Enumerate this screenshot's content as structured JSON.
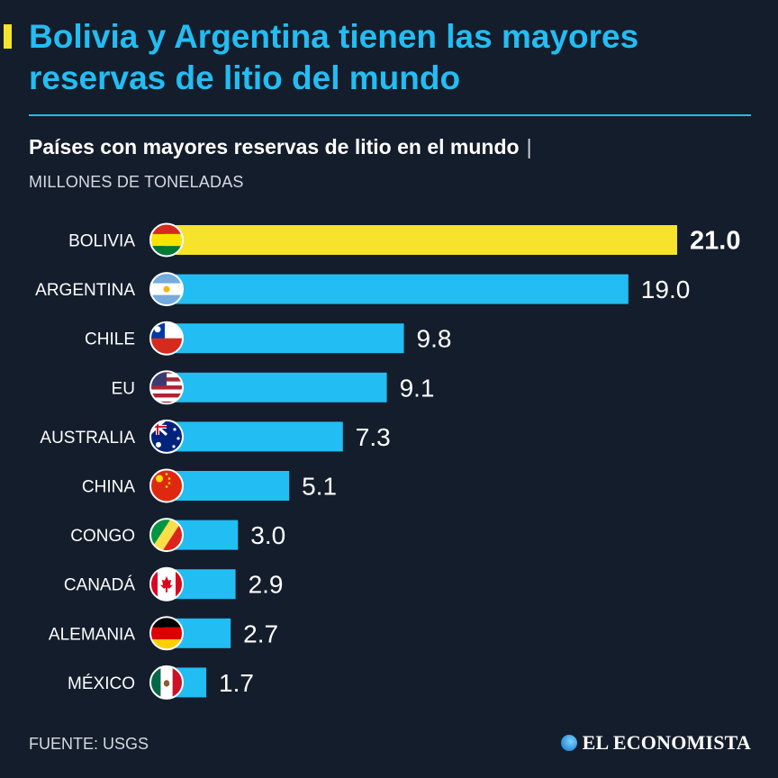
{
  "header": {
    "title": "Bolivia y Argentina tienen las mayores reservas de litio del mundo",
    "subtitle": "Países con mayores reservas de litio en el mundo",
    "subtitle_sep": "|",
    "units": "MILLONES DE TONELADAS"
  },
  "footer": {
    "source": "FUENTE: USGS",
    "brand": "EL ECONOMISTA"
  },
  "colors": {
    "background": "#141d2b",
    "accent": "#22bdf3",
    "highlight": "#f7e32b",
    "bar": "#22bdf3"
  },
  "chart_data": {
    "type": "bar",
    "orientation": "horizontal",
    "title": "Países con mayores reservas de litio en el mundo",
    "unit": "MILLONES DE TONELADAS",
    "categories": [
      "BOLIVIA",
      "ARGENTINA",
      "CHILE",
      "EU",
      "AUSTRALIA",
      "CHINA",
      "CONGO",
      "CANADÁ",
      "ALEMANIA",
      "MÉXICO"
    ],
    "values": [
      21.0,
      19.0,
      9.8,
      9.1,
      7.3,
      5.1,
      3.0,
      2.9,
      2.7,
      1.7
    ],
    "value_labels": [
      "21.0",
      "19.0",
      "9.8",
      "9.1",
      "7.3",
      "5.1",
      "3.0",
      "2.9",
      "2.7",
      "1.7"
    ],
    "flag_icons": [
      "bolivia-flag-icon",
      "argentina-flag-icon",
      "chile-flag-icon",
      "usa-flag-icon",
      "australia-flag-icon",
      "china-flag-icon",
      "congo-flag-icon",
      "canada-flag-icon",
      "germany-flag-icon",
      "mexico-flag-icon"
    ],
    "highlight_index": 0,
    "xlim": [
      0,
      21.0
    ],
    "grid": false,
    "legend": "none"
  }
}
